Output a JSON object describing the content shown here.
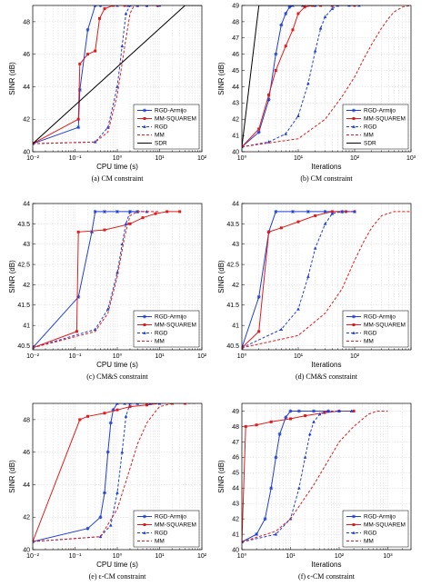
{
  "colors": {
    "rgd_armijo": "#1f3fd6",
    "mm_squarem": "#e01b1b",
    "rgd": "#1f3fd6",
    "mm": "#e01b1b",
    "sdr": "#000000"
  },
  "chart_data": [
    {
      "type": "line",
      "caption": "(a) CM constraint",
      "xlabel": "CPU time (s)",
      "ylabel": "SINR (dB)",
      "xscale": "log",
      "xlim": [
        0.01,
        100
      ],
      "ylim": [
        40,
        49
      ],
      "xtick_labels": [
        "10⁻²",
        "10⁻¹",
        "10⁰",
        "10¹",
        "10²"
      ],
      "ytick_labels": [
        "40",
        "42",
        "44",
        "46",
        "48"
      ],
      "legend": "bottom-right",
      "series": [
        {
          "name": "RGD-Armijo",
          "style": "solid-star",
          "x": [
            0.01,
            0.12,
            0.13,
            0.2,
            0.3,
            0.4,
            1.0,
            1.8,
            3,
            5,
            9
          ],
          "y": [
            40.5,
            41.5,
            43.8,
            47.5,
            49.0,
            49.0,
            49.0,
            49.0,
            49.0,
            49.0,
            49.0
          ]
        },
        {
          "name": "MM-SQUAREM",
          "style": "solid-square",
          "x": [
            0.01,
            0.12,
            0.13,
            0.2,
            0.3,
            0.38,
            0.5,
            0.8,
            1.5,
            3,
            5,
            9
          ],
          "y": [
            40.5,
            42.0,
            45.4,
            46.0,
            46.2,
            48.2,
            48.8,
            49.0,
            49.0,
            49.0,
            49.0,
            49.0
          ]
        },
        {
          "name": "RGD",
          "style": "dashed-triangle",
          "x": [
            0.01,
            0.3,
            0.6,
            1.0,
            1.3,
            1.6,
            2.0,
            3,
            5,
            10
          ],
          "y": [
            40.5,
            40.6,
            41.5,
            44.0,
            46.5,
            48.5,
            49.0,
            49.0,
            49.0,
            49.0
          ]
        },
        {
          "name": "MM",
          "style": "dashed",
          "x": [
            0.01,
            0.3,
            0.6,
            1.0,
            1.5,
            2.0,
            2.5,
            3.0,
            5,
            10
          ],
          "y": [
            40.5,
            40.6,
            41.2,
            43.5,
            46.5,
            48.5,
            49.0,
            49.0,
            49.0,
            49.0
          ]
        },
        {
          "name": "SDR",
          "style": "solid",
          "x": [
            0.01,
            40,
            100
          ],
          "y": [
            40.5,
            49.0,
            49.0
          ]
        }
      ]
    },
    {
      "type": "line",
      "caption": "(b) CM constraint",
      "xlabel": "Iterations",
      "ylabel": "SINR (dB)",
      "xscale": "log",
      "xlim": [
        1,
        1000
      ],
      "ylim": [
        40,
        49
      ],
      "xtick_labels": [
        "10⁰",
        "10¹",
        "10²",
        "10³"
      ],
      "ytick_labels": [
        "40",
        "41",
        "42",
        "43",
        "44",
        "45",
        "46",
        "47",
        "48",
        "49"
      ],
      "legend": "bottom-right",
      "series": [
        {
          "name": "RGD-Armijo",
          "style": "solid-star",
          "x": [
            1,
            2,
            3,
            4,
            5,
            6,
            7,
            8,
            12,
            20,
            40
          ],
          "y": [
            40.3,
            41.2,
            43.2,
            46.0,
            47.8,
            48.5,
            48.9,
            49.0,
            49.0,
            49.0,
            49.0
          ]
        },
        {
          "name": "MM-SQUAREM",
          "style": "solid-square",
          "x": [
            1,
            2,
            3,
            4,
            6,
            8,
            10,
            13,
            18,
            25,
            40,
            100
          ],
          "y": [
            40.3,
            41.4,
            43.5,
            45.0,
            46.5,
            47.5,
            48.5,
            48.9,
            49.0,
            49.0,
            49.0,
            49.0
          ]
        },
        {
          "name": "RGD",
          "style": "dashed-triangle",
          "x": [
            1,
            3,
            6,
            10,
            15,
            20,
            25,
            30,
            40,
            50,
            80,
            120
          ],
          "y": [
            40.3,
            40.6,
            41.1,
            42.2,
            44.2,
            46.2,
            47.6,
            48.3,
            48.8,
            49.0,
            49.0,
            49.0
          ]
        },
        {
          "name": "MM",
          "style": "dashed",
          "x": [
            1,
            10,
            30,
            60,
            100,
            150,
            200,
            300,
            400,
            500,
            700,
            1000
          ],
          "y": [
            40.3,
            40.8,
            42.0,
            43.4,
            44.6,
            45.8,
            46.6,
            47.6,
            48.2,
            48.6,
            48.9,
            49.0
          ]
        },
        {
          "name": "SDR",
          "style": "solid",
          "x": [
            1,
            2,
            20,
            100
          ],
          "y": [
            40.3,
            49.0,
            49.0,
            49.0
          ]
        }
      ]
    },
    {
      "type": "line",
      "caption": "(c) CM&S constraint",
      "xlabel": "CPU time (s)",
      "ylabel": "SINR (dB)",
      "xscale": "log",
      "xlim": [
        0.01,
        100
      ],
      "ylim": [
        40.4,
        44
      ],
      "xtick_labels": [
        "10⁻²",
        "10⁻¹",
        "10⁰",
        "10¹",
        "10²"
      ],
      "ytick_labels": [
        "40.5",
        "41",
        "41.5",
        "42",
        "42.5",
        "43",
        "43.5",
        "44"
      ],
      "legend": "bottom-right",
      "series": [
        {
          "name": "RGD-Armijo",
          "style": "solid-star",
          "x": [
            0.01,
            0.12,
            0.25,
            0.3,
            0.5,
            1,
            2,
            3
          ],
          "y": [
            40.45,
            41.7,
            43.3,
            43.8,
            43.8,
            43.8,
            43.8,
            43.8
          ]
        },
        {
          "name": "MM-SQUAREM",
          "style": "solid-square",
          "x": [
            0.01,
            0.11,
            0.12,
            0.5,
            2,
            4,
            8,
            15,
            30
          ],
          "y": [
            40.45,
            40.85,
            43.3,
            43.35,
            43.5,
            43.65,
            43.75,
            43.8,
            43.8
          ]
        },
        {
          "name": "RGD",
          "style": "dashed-triangle",
          "x": [
            0.01,
            0.3,
            0.6,
            1.0,
            1.3,
            1.6,
            2.0,
            3,
            5
          ],
          "y": [
            40.45,
            40.9,
            41.4,
            42.3,
            43.0,
            43.5,
            43.8,
            43.8,
            43.8
          ]
        },
        {
          "name": "MM",
          "style": "dashed",
          "x": [
            0.01,
            0.3,
            0.6,
            1.0,
            1.5,
            2.0,
            3,
            5,
            10
          ],
          "y": [
            40.45,
            40.85,
            41.3,
            42.2,
            43.2,
            43.7,
            43.8,
            43.8,
            43.8
          ]
        }
      ]
    },
    {
      "type": "line",
      "caption": "(d) CM&S constraint",
      "xlabel": "Iterations",
      "ylabel": "SINR (dB)",
      "xscale": "log",
      "xlim": [
        1,
        1000
      ],
      "ylim": [
        40.4,
        44
      ],
      "xtick_labels": [
        "10⁰",
        "10¹",
        "10²"
      ],
      "ytick_labels": [
        "40.5",
        "41",
        "41.5",
        "42",
        "42.5",
        "43",
        "43.5",
        "44"
      ],
      "legend": "bottom-right",
      "series": [
        {
          "name": "RGD-Armijo",
          "style": "solid-star",
          "x": [
            1,
            2,
            3,
            4,
            8,
            15,
            30,
            60
          ],
          "y": [
            40.45,
            41.7,
            43.3,
            43.8,
            43.8,
            43.8,
            43.8,
            43.8
          ]
        },
        {
          "name": "MM-SQUAREM",
          "style": "solid-square",
          "x": [
            1,
            2,
            3,
            5,
            10,
            20,
            40,
            70,
            100
          ],
          "y": [
            40.45,
            40.85,
            43.3,
            43.4,
            43.55,
            43.7,
            43.8,
            43.8,
            43.8
          ]
        },
        {
          "name": "RGD",
          "style": "dashed-triangle",
          "x": [
            1,
            5,
            10,
            15,
            20,
            30,
            40,
            60,
            100
          ],
          "y": [
            40.45,
            40.9,
            41.4,
            42.2,
            42.9,
            43.5,
            43.75,
            43.8,
            43.8
          ]
        },
        {
          "name": "MM",
          "style": "dashed",
          "x": [
            1,
            10,
            30,
            60,
            100,
            150,
            200,
            300,
            500,
            1000
          ],
          "y": [
            40.45,
            40.75,
            41.3,
            41.9,
            42.6,
            43.1,
            43.4,
            43.7,
            43.8,
            43.8
          ]
        }
      ]
    },
    {
      "type": "line",
      "caption": "(e) ϵ-CM constraint",
      "xlabel": "CPU time (s)",
      "ylabel": "SINR (dB)",
      "xscale": "log",
      "xlim": [
        0.01,
        100
      ],
      "ylim": [
        40,
        49
      ],
      "xtick_labels": [
        "10⁻²",
        "10⁻¹",
        "10⁰",
        "10¹",
        "10²"
      ],
      "ytick_labels": [
        "40",
        "42",
        "44",
        "46",
        "48"
      ],
      "legend": "bottom-right",
      "series": [
        {
          "name": "RGD-Armijo",
          "style": "solid-star",
          "x": [
            0.01,
            0.2,
            0.4,
            0.5,
            0.6,
            0.7,
            0.8,
            1.0,
            1.5,
            3,
            6
          ],
          "y": [
            40.5,
            41.3,
            42.0,
            43.5,
            46.0,
            47.8,
            48.6,
            49.0,
            49.0,
            49.0,
            49.0
          ]
        },
        {
          "name": "MM-SQUAREM",
          "style": "solid-square",
          "x": [
            0.01,
            0.13,
            0.2,
            0.5,
            1,
            2,
            5,
            10,
            20,
            40
          ],
          "y": [
            40.5,
            48.0,
            48.2,
            48.4,
            48.6,
            48.8,
            48.9,
            49.0,
            49.0,
            49.0
          ]
        },
        {
          "name": "RGD",
          "style": "dashed-triangle",
          "x": [
            0.01,
            0.4,
            0.7,
            1.0,
            1.3,
            1.6,
            2.0,
            3,
            6,
            10
          ],
          "y": [
            40.5,
            40.8,
            41.5,
            43.5,
            46.0,
            48.2,
            49.0,
            49.0,
            49.0,
            49.0
          ]
        },
        {
          "name": "MM",
          "style": "dashed",
          "x": [
            0.01,
            0.4,
            1.0,
            2.0,
            3.0,
            5,
            8,
            10,
            20,
            70
          ],
          "y": [
            40.5,
            40.8,
            42.5,
            45.0,
            46.5,
            47.8,
            48.5,
            48.8,
            49.0,
            49.0
          ]
        }
      ]
    },
    {
      "type": "line",
      "caption": "(f) ϵ-CM constraint",
      "xlabel": "Iterations",
      "ylabel": "SINR (dB)",
      "xscale": "log",
      "xlim": [
        1,
        3000
      ],
      "ylim": [
        40,
        49.5
      ],
      "xtick_labels": [
        "10⁰",
        "10¹",
        "10²",
        "10³"
      ],
      "ytick_labels": [
        "40",
        "41",
        "42",
        "43",
        "44",
        "45",
        "46",
        "47",
        "48",
        "49"
      ],
      "legend": "bottom-right",
      "series": [
        {
          "name": "RGD-Armijo",
          "style": "solid-star",
          "x": [
            1,
            2,
            3,
            4,
            5,
            6,
            8,
            10,
            15,
            30,
            60
          ],
          "y": [
            40.5,
            41.0,
            42.0,
            44.0,
            46.0,
            47.5,
            48.6,
            49.0,
            49.0,
            49.0,
            49.0
          ]
        },
        {
          "name": "MM-SQUAREM",
          "style": "solid-square",
          "x": [
            1,
            1.2,
            2,
            4,
            10,
            20,
            50,
            100,
            200
          ],
          "y": [
            40.5,
            48.0,
            48.1,
            48.3,
            48.5,
            48.7,
            48.9,
            49.0,
            49.0
          ]
        },
        {
          "name": "RGD",
          "style": "dashed-triangle",
          "x": [
            1,
            5,
            10,
            15,
            20,
            25,
            30,
            40,
            60,
            100,
            180
          ],
          "y": [
            40.5,
            41.0,
            42.0,
            44.0,
            46.0,
            47.5,
            48.3,
            48.8,
            49.0,
            49.0,
            49.0
          ]
        },
        {
          "name": "MM",
          "style": "dashed",
          "x": [
            1,
            5,
            10,
            30,
            60,
            100,
            200,
            400,
            600,
            1000
          ],
          "y": [
            40.5,
            41.2,
            42.0,
            44.2,
            45.8,
            47.0,
            48.0,
            48.8,
            49.0,
            49.0
          ]
        }
      ]
    }
  ]
}
